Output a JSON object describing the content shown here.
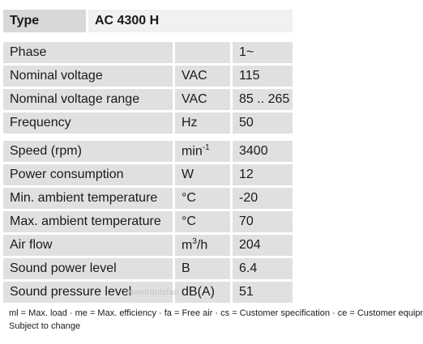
{
  "type_header": {
    "label": "Type",
    "value": "AC 4300 H"
  },
  "group1": [
    {
      "name": "Phase",
      "unit": "",
      "value": "1~"
    },
    {
      "name": "Nominal voltage",
      "unit": "VAC",
      "value": "115"
    },
    {
      "name": "Nominal voltage range",
      "unit": "VAC",
      "value": "85 .. 265"
    },
    {
      "name": "Frequency",
      "unit": "Hz",
      "value": "50"
    }
  ],
  "group2": [
    {
      "name": "Speed (rpm)",
      "unit_base": "min",
      "unit_sup": "-1",
      "value": "3400"
    },
    {
      "name": "Power consumption",
      "unit": "W",
      "value": "12"
    },
    {
      "name": "Min. ambient temperature",
      "unit": "°C",
      "value": "-20"
    },
    {
      "name": "Max. ambient temperature",
      "unit": "°C",
      "value": "70"
    },
    {
      "name": "Air flow",
      "unit_base": "m",
      "unit_sup": "3",
      "unit_tail": "/h",
      "value": "204"
    },
    {
      "name": "Sound power level",
      "unit": "B",
      "value": "6.4"
    },
    {
      "name": "Sound pressure level",
      "unit": "dB(A)",
      "value": "51"
    }
  ],
  "notes": {
    "legend": "ml = Max. load · me = Max. efficiency · fa = Free air · cs = Customer specification · ce = Customer equipment",
    "disclaimer": "Subject to change"
  },
  "watermark": "eurotronicfan"
}
